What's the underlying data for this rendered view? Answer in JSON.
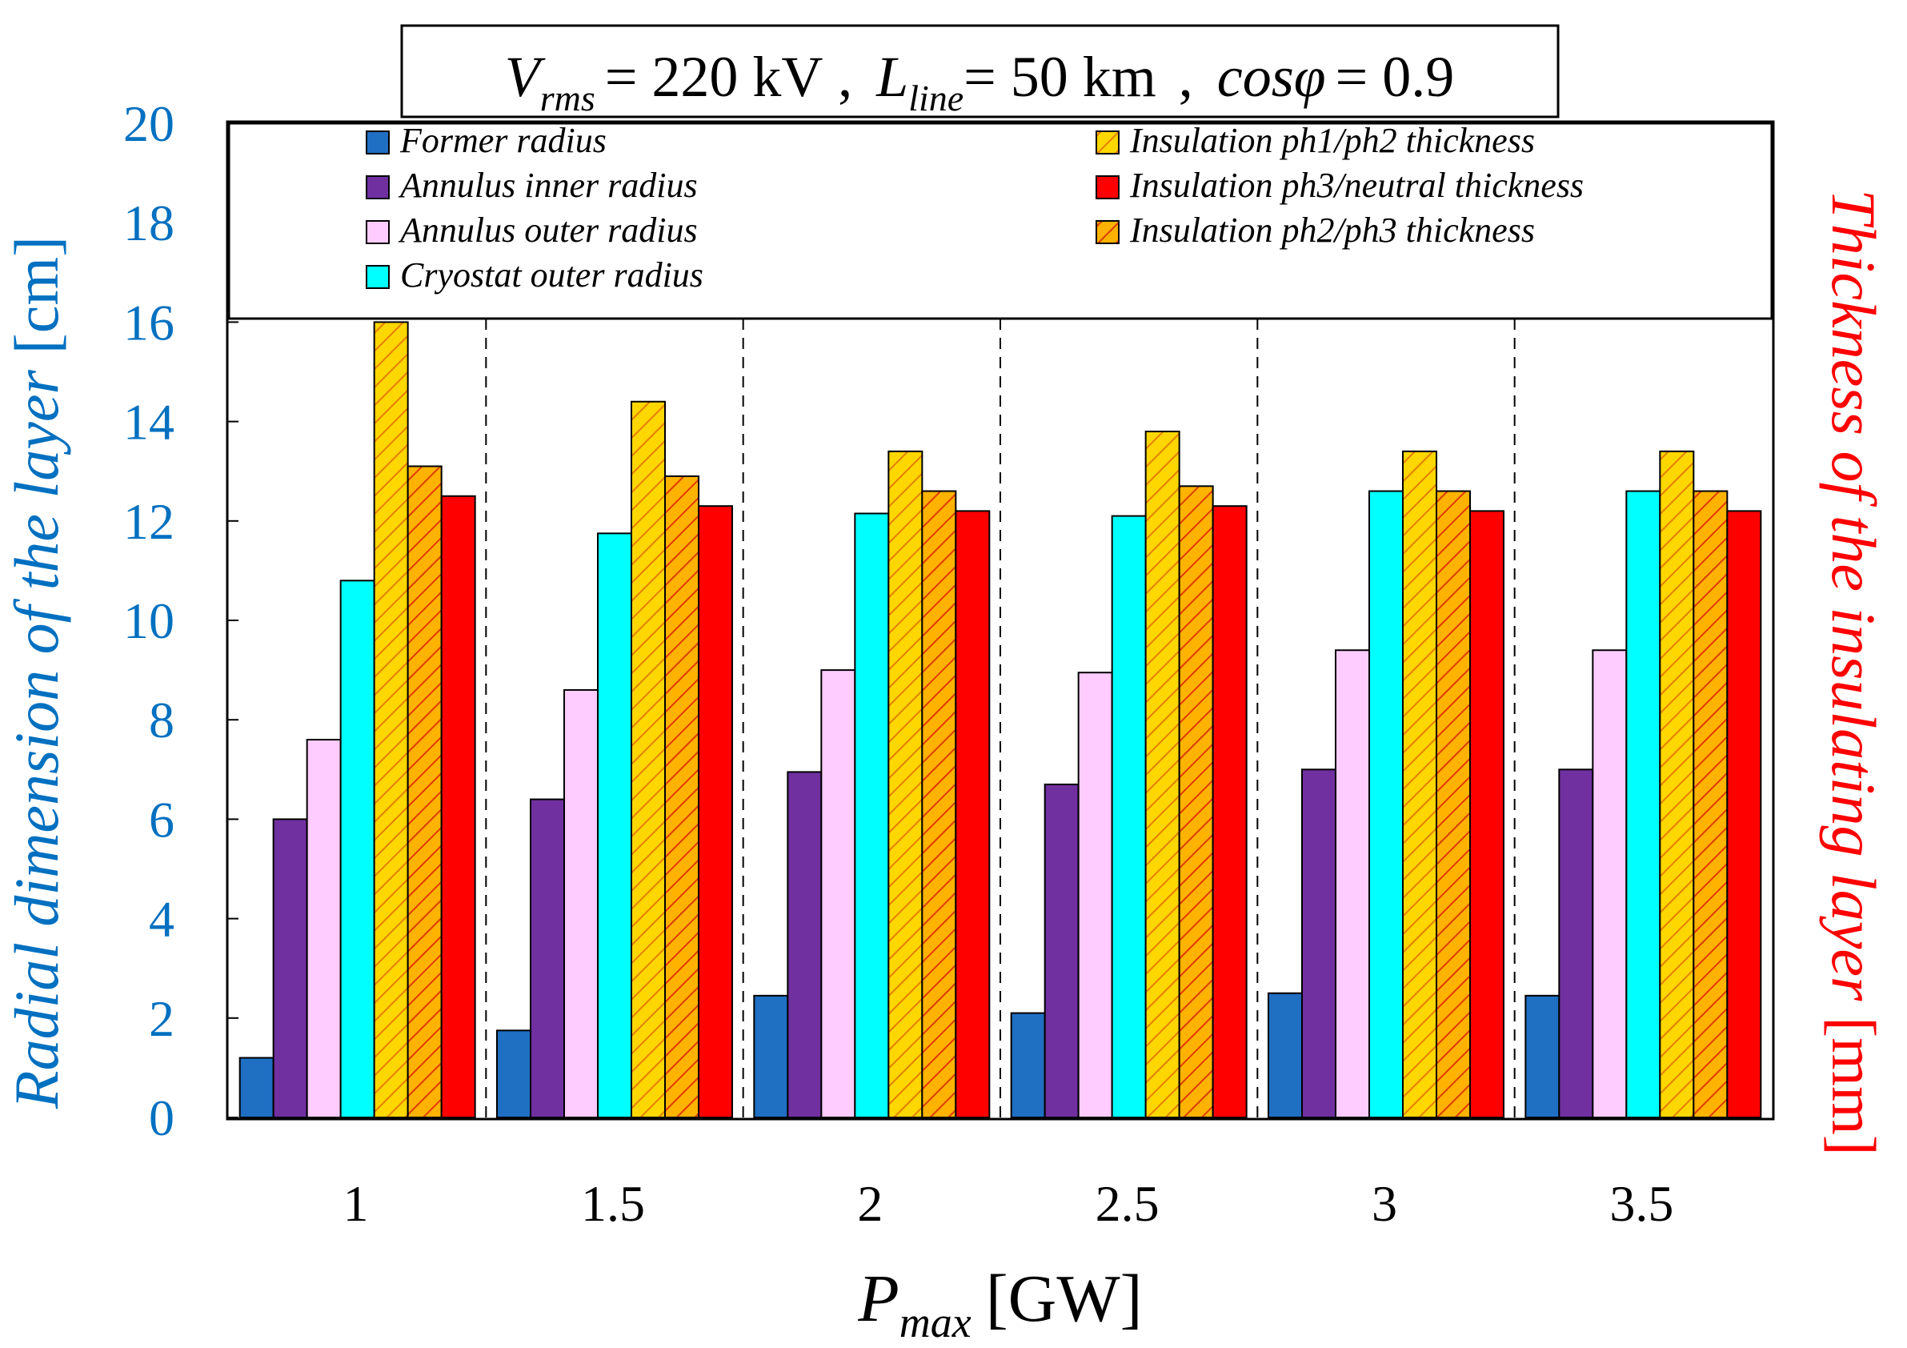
{
  "chart_data": {
    "type": "bar",
    "title": {
      "v_symbol": "V",
      "v_sub": "rms",
      "v_value": "= 220 kV",
      "sep1": ",",
      "l_symbol": "L",
      "l_sub": "line",
      "l_value": "= 50 km",
      "sep2": ",",
      "cos_symbol": "cosφ",
      "cos_value": "= 0.9"
    },
    "xlabel": {
      "symbol": "P",
      "sub": "max",
      "unit": "[GW]"
    },
    "ylabel_left": {
      "text": "Radial dimension of the layer",
      "unit": "[cm]"
    },
    "ylabel_right": {
      "text": "Thickness of the insulating layer",
      "unit": "[mm]"
    },
    "categories": [
      "1",
      "1.5",
      "2",
      "2.5",
      "3",
      "3.5"
    ],
    "ylim": [
      0,
      20
    ],
    "yticks": [
      "0",
      "2",
      "4",
      "6",
      "8",
      "10",
      "12",
      "14",
      "16",
      "18",
      "20"
    ],
    "series": [
      {
        "name": "Former radius",
        "color": "#1f6fc2",
        "pattern": "solid",
        "values": [
          1.2,
          1.75,
          2.45,
          2.1,
          2.5,
          2.45
        ]
      },
      {
        "name": "Annulus inner radius",
        "color": "#7030a0",
        "pattern": "solid",
        "values": [
          6.0,
          6.4,
          6.95,
          6.7,
          7.0,
          7.0
        ]
      },
      {
        "name": "Annulus outer radius",
        "color": "#ffccff",
        "pattern": "solid",
        "values": [
          7.6,
          8.6,
          9.0,
          8.95,
          9.4,
          9.4
        ]
      },
      {
        "name": "Cryostat outer radius",
        "color": "#00ffff",
        "pattern": "solid",
        "values": [
          10.8,
          11.75,
          12.15,
          12.1,
          12.6,
          12.6
        ]
      },
      {
        "name": "Insulation ph1/ph2 thickness",
        "color": "#ffd700",
        "pattern": "hatch",
        "values": [
          16.0,
          14.4,
          13.4,
          13.8,
          13.4,
          13.4
        ]
      },
      {
        "name": "Insulation ph2/ph3 thickness",
        "color": "#ff9900",
        "pattern": "hatch",
        "values": [
          13.1,
          12.9,
          12.6,
          12.7,
          12.6,
          12.6
        ]
      },
      {
        "name": "Insulation ph3/neutral thickness",
        "color": "#ff0000",
        "pattern": "solid",
        "values": [
          12.5,
          12.3,
          12.2,
          12.3,
          12.2,
          12.2
        ]
      }
    ],
    "legend_location": "top",
    "legend_order": [
      0,
      4,
      1,
      6,
      2,
      5,
      3
    ],
    "grid": false,
    "colors": {
      "left_axis": "#0070c0",
      "right_axis": "#ff0000",
      "text": "#000000"
    }
  }
}
